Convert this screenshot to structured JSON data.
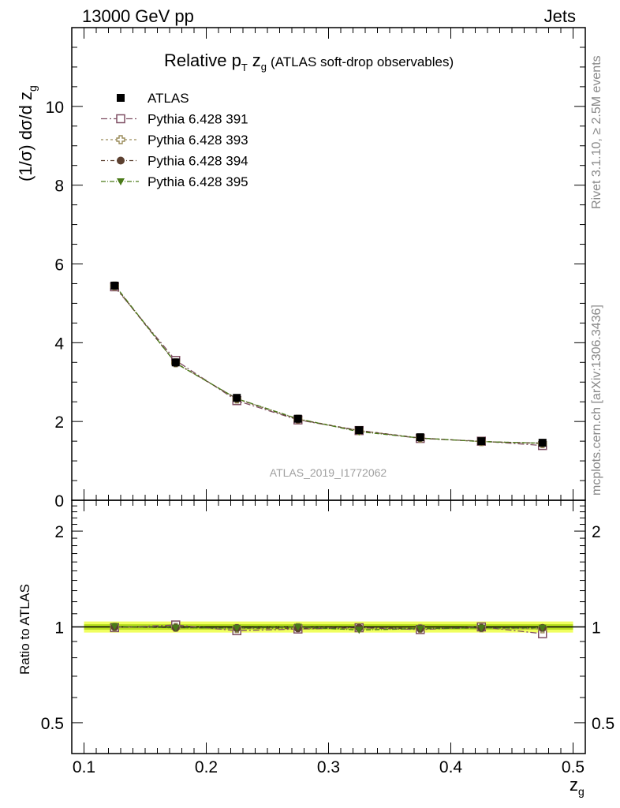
{
  "header": {
    "left": "13000 GeV pp",
    "right": "Jets"
  },
  "side": {
    "rivet": "Rivet 3.1.10, ≥ 2.5M events",
    "mcplots": "mcplots.cern.ch [arXiv:1306.3436]"
  },
  "watermark": "ATLAS_2019_I1772062",
  "colors": {
    "data": "#000000",
    "p391": "#7f4f63",
    "p393": "#9a8c5a",
    "p394": "#5c4030",
    "p395": "#4a7a18",
    "band_outer": "#f0ff60",
    "band_inner": "#b8e020"
  },
  "chart_data": [
    {
      "type": "line",
      "title_main": "Relative p",
      "title_sub_T": "T",
      "title_z": "z",
      "title_sub_g": "g",
      "title_rest": "(ATLAS soft-drop observables)",
      "ylabel_main": "(1/σ) dσ/d z",
      "ylabel_sub": "g",
      "xlim": [
        0.09,
        0.51
      ],
      "ylim": [
        0,
        12
      ],
      "yticks": [
        0,
        2,
        4,
        6,
        8,
        10
      ],
      "x": [
        0.125,
        0.175,
        0.225,
        0.275,
        0.325,
        0.375,
        0.425,
        0.475
      ],
      "series": [
        {
          "name": "ATLAS",
          "key": "data",
          "marker": "square-filled",
          "values": [
            5.45,
            3.5,
            2.6,
            2.07,
            1.78,
            1.6,
            1.5,
            1.46
          ]
        },
        {
          "name": "Pythia 6.428 391",
          "key": "p391",
          "marker": "square-open",
          "dash": "8,3,2,3",
          "values": [
            5.42,
            3.55,
            2.53,
            2.04,
            1.77,
            1.57,
            1.5,
            1.39
          ]
        },
        {
          "name": "Pythia 6.428 393",
          "key": "p393",
          "marker": "cross-open",
          "dash": "3,3",
          "values": [
            5.44,
            3.49,
            2.57,
            2.06,
            1.77,
            1.58,
            1.49,
            1.44
          ]
        },
        {
          "name": "Pythia 6.428 394",
          "key": "p394",
          "marker": "circle-filled",
          "dash": "5,3,1,3",
          "values": [
            5.45,
            3.48,
            2.58,
            2.05,
            1.77,
            1.58,
            1.49,
            1.45
          ]
        },
        {
          "name": "Pythia 6.428 395",
          "key": "p395",
          "marker": "triangle-down-filled",
          "dash": "6,2,1,2",
          "values": [
            5.47,
            3.48,
            2.58,
            2.07,
            1.74,
            1.58,
            1.49,
            1.45
          ]
        }
      ]
    },
    {
      "type": "line",
      "ylabel": "Ratio to ATLAS",
      "xlabel_main": "z",
      "xlabel_sub": "g",
      "xticks": [
        0.1,
        0.2,
        0.3,
        0.4,
        0.5
      ],
      "xtick_labels": [
        "0.1",
        "0.2",
        "0.3",
        "0.4",
        "0.5"
      ],
      "ylim": [
        0.4,
        2.5
      ],
      "yscale": "log",
      "yticks": [
        0.5,
        1,
        2
      ],
      "ytick_labels": [
        "0.5",
        "1",
        "2"
      ],
      "band": {
        "inner": 0.02,
        "outer": 0.04
      },
      "x": [
        0.125,
        0.175,
        0.225,
        0.275,
        0.325,
        0.375,
        0.425,
        0.475
      ],
      "series": [
        {
          "name": "Pythia 6.428 391",
          "key": "p391",
          "values": [
            0.995,
            1.014,
            0.973,
            0.985,
            0.994,
            0.981,
            1.0,
            0.952
          ]
        },
        {
          "name": "Pythia 6.428 393",
          "key": "p393",
          "values": [
            0.998,
            0.997,
            0.988,
            0.995,
            0.994,
            0.988,
            0.993,
            0.986
          ]
        },
        {
          "name": "Pythia 6.428 394",
          "key": "p394",
          "values": [
            1.0,
            0.994,
            0.992,
            0.99,
            0.994,
            0.988,
            0.993,
            0.993
          ]
        },
        {
          "name": "Pythia 6.428 395",
          "key": "p395",
          "values": [
            1.004,
            0.994,
            0.992,
            1.0,
            0.978,
            0.988,
            0.993,
            0.993
          ]
        }
      ]
    }
  ]
}
